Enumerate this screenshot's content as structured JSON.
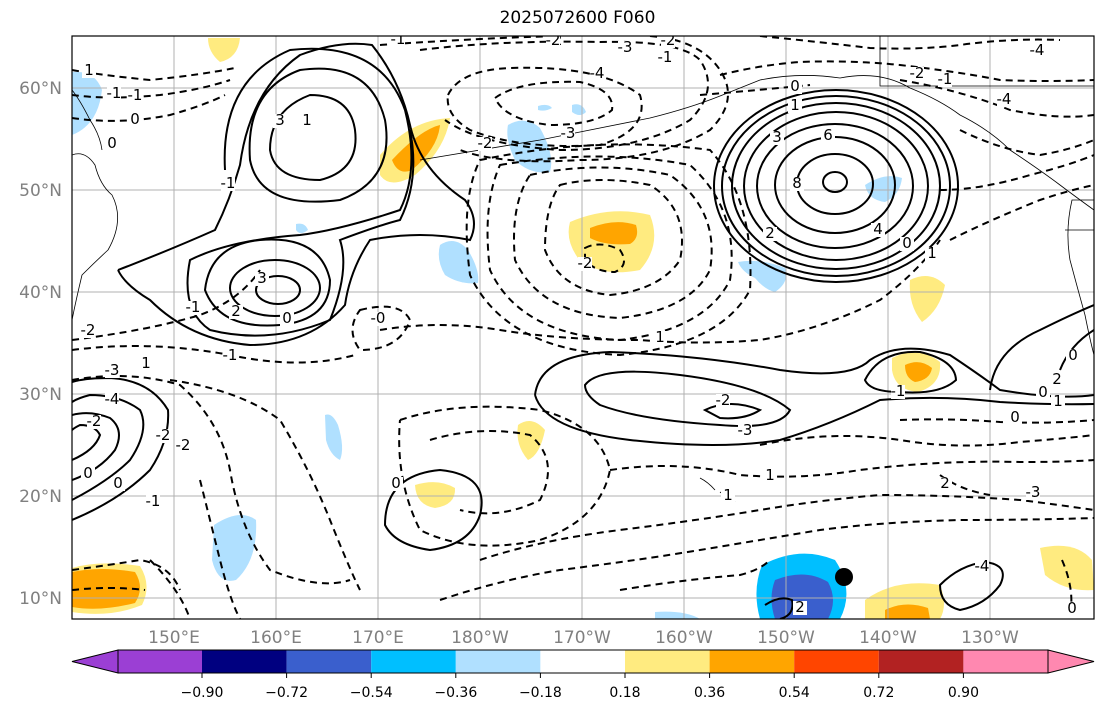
{
  "title": "2025072600 F060",
  "lat_labels": [
    "60°N",
    "50°N",
    "40°N",
    "30°N",
    "20°N",
    "10°N"
  ],
  "lon_labels": [
    "150°E",
    "160°E",
    "170°E",
    "180°W",
    "170°W",
    "160°W",
    "150°W",
    "140°W",
    "130°W"
  ],
  "colorbar": {
    "ticks": [
      "−0.90",
      "−0.72",
      "−0.54",
      "−0.36",
      "−0.18",
      "0.18",
      "0.36",
      "0.54",
      "0.72",
      "0.90"
    ],
    "colors": [
      "#9b3fd4",
      "#000080",
      "#3a5fcd",
      "#00bfff",
      "#b0e0ff",
      "#ffffff",
      "#ffeb80",
      "#ffa500",
      "#ff4500",
      "#b22222",
      "#ff88b0"
    ]
  },
  "contour_labels": [
    "-2",
    "-1",
    "-2",
    "-3",
    "-4",
    "-1",
    "-2",
    "-3",
    "-2",
    "-4",
    "0",
    "1",
    "3",
    "6",
    "8",
    "2",
    "4",
    "0",
    "1",
    "-2",
    "3",
    "1",
    "3",
    "2",
    "0",
    "-1",
    "-1",
    "-0",
    "2",
    "-1",
    "0",
    "1",
    "-2",
    "-1",
    "0",
    "1",
    "-2",
    "-3",
    "-1",
    "0",
    "1",
    "0",
    "-4",
    "-3",
    "1",
    "-2",
    "-2",
    "0",
    "0",
    "-2",
    "-1",
    "0",
    "-4",
    "2",
    "1",
    "0",
    "-3",
    "-2",
    "-1",
    "2",
    "0",
    "-4",
    "1",
    "-2",
    "-1"
  ],
  "shading_colors": {
    "light_blue": "#b0e0ff",
    "blue": "#00bfff",
    "dark_blue": "#3a5fcd",
    "light_yellow": "#ffeb80",
    "orange": "#ffa500"
  }
}
